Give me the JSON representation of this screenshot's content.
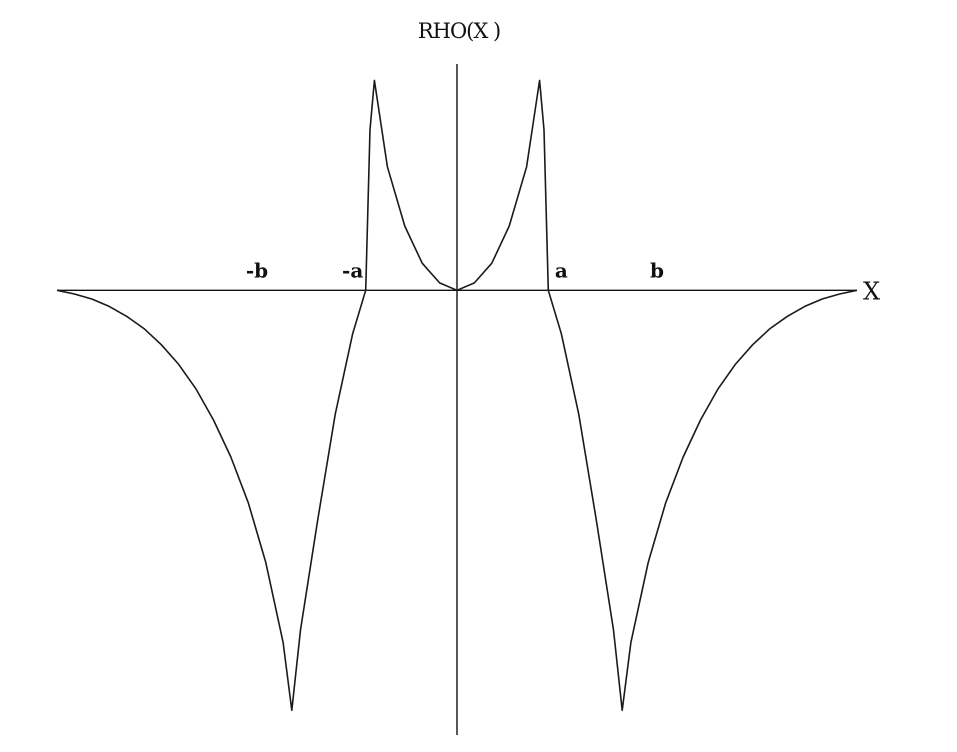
{
  "chart_data": {
    "type": "line",
    "ylabel": "RHO(X )",
    "xlabel": "X",
    "grid": false,
    "legend": "none",
    "line_color": "#1a1a1a",
    "xlim": [
      -4.6,
      4.6
    ],
    "ylim": [
      -3.6,
      1.8
    ],
    "tick_labels": [
      {
        "text": "-b",
        "x": -2.3
      },
      {
        "text": "-a",
        "x": -1.2
      },
      {
        "text": "a",
        "x": 1.2
      },
      {
        "text": "b",
        "x": 2.3
      }
    ],
    "series": [
      {
        "x": [
          -4.6,
          -4.4,
          -4.2,
          -4.0,
          -3.8,
          -3.6,
          -3.4,
          -3.2,
          -3.0,
          -2.8,
          -2.6,
          -2.4,
          -2.2,
          -2.0,
          -1.9,
          -1.8,
          -1.6,
          -1.4,
          -1.2,
          -1.05,
          -1.0,
          -0.95,
          -0.8,
          -0.6,
          -0.4,
          -0.2,
          0.0,
          0.2,
          0.4,
          0.6,
          0.8,
          0.95,
          1.0,
          1.05,
          1.2,
          1.4,
          1.6,
          1.8,
          1.9,
          2.0,
          2.2,
          2.4,
          2.6,
          2.8,
          3.0,
          3.2,
          3.4,
          3.6,
          3.8,
          4.0,
          4.2,
          4.4,
          4.6
        ],
        "y": [
          0.0,
          -0.03,
          -0.07,
          -0.13,
          -0.21,
          -0.31,
          -0.44,
          -0.6,
          -0.8,
          -1.05,
          -1.35,
          -1.72,
          -2.2,
          -2.85,
          -3.4,
          -2.75,
          -1.85,
          -1.0,
          -0.35,
          0.0,
          1.3,
          1.7,
          1.0,
          0.52,
          0.22,
          0.06,
          0.0,
          0.06,
          0.22,
          0.52,
          1.0,
          1.7,
          1.3,
          0.0,
          -0.35,
          -1.0,
          -1.85,
          -2.75,
          -3.4,
          -2.85,
          -2.2,
          -1.72,
          -1.35,
          -1.05,
          -0.8,
          -0.6,
          -0.44,
          -0.31,
          -0.21,
          -0.13,
          -0.07,
          -0.03,
          0.0
        ]
      }
    ]
  }
}
